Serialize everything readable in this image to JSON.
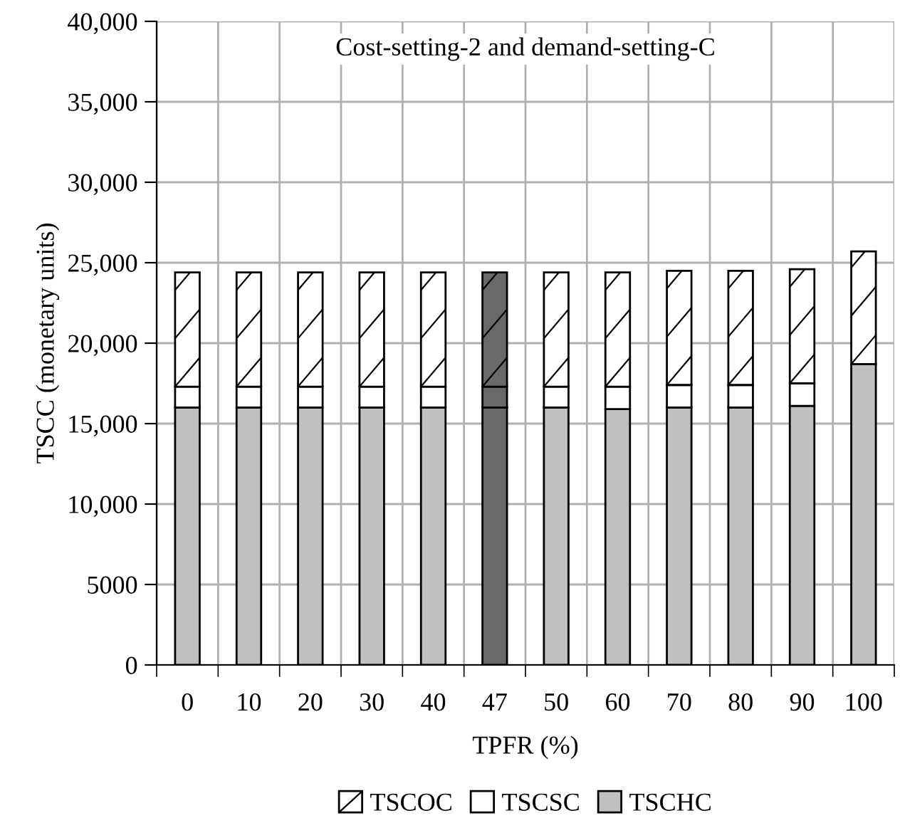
{
  "chart_data": {
    "type": "bar",
    "stacked": true,
    "title": "Cost-setting-2 and demand-setting-C",
    "xlabel": "TPFR (%)",
    "ylabel": "TSCC (monetary units)",
    "categories": [
      "0",
      "10",
      "20",
      "30",
      "40",
      "47",
      "50",
      "60",
      "70",
      "80",
      "90",
      "100"
    ],
    "series": [
      {
        "name": "TSCHC",
        "color": "#c0c0c0",
        "colors": [
          "#c0c0c0",
          "#c0c0c0",
          "#c0c0c0",
          "#c0c0c0",
          "#c0c0c0",
          "#696969",
          "#c0c0c0",
          "#c0c0c0",
          "#c0c0c0",
          "#c0c0c0",
          "#c0c0c0",
          "#c0c0c0"
        ],
        "values": [
          16000,
          16000,
          16000,
          16000,
          16000,
          16000,
          16000,
          15900,
          16000,
          16000,
          16100,
          18700
        ]
      },
      {
        "name": "TSCSC",
        "color": "#ffffff",
        "colors": [
          "#ffffff",
          "#ffffff",
          "#ffffff",
          "#ffffff",
          "#ffffff",
          "#696969",
          "#ffffff",
          "#ffffff",
          "#ffffff",
          "#ffffff",
          "#ffffff",
          "#ffffff"
        ],
        "values": [
          1300,
          1300,
          1300,
          1300,
          1300,
          1300,
          1300,
          1400,
          1400,
          1400,
          1400,
          null
        ]
      },
      {
        "name": "TSCOC",
        "color": "#ffffff",
        "colors": [
          "#ffffff",
          "#ffffff",
          "#ffffff",
          "#ffffff",
          "#ffffff",
          "#696969",
          "#ffffff",
          "#ffffff",
          "#ffffff",
          "#ffffff",
          "#ffffff",
          "#ffffff"
        ],
        "values": [
          7100,
          7100,
          7100,
          7100,
          7100,
          7100,
          7100,
          7100,
          7100,
          7100,
          7100,
          7000
        ]
      }
    ],
    "ylim": [
      0,
      40000
    ],
    "yticks": [
      0,
      {
        "value": 5000,
        "label": "5000"
      },
      {
        "value": 10000,
        "label": "10,000"
      },
      {
        "value": 15000,
        "label": "15,000"
      },
      {
        "value": 20000,
        "label": "20,000"
      },
      {
        "value": 25000,
        "label": "25,000"
      },
      {
        "value": 30000,
        "label": "30,000"
      },
      {
        "value": 35000,
        "label": "35,000"
      },
      {
        "value": 40000,
        "label": "40,000"
      }
    ],
    "grid": true,
    "legend": "bottom"
  }
}
